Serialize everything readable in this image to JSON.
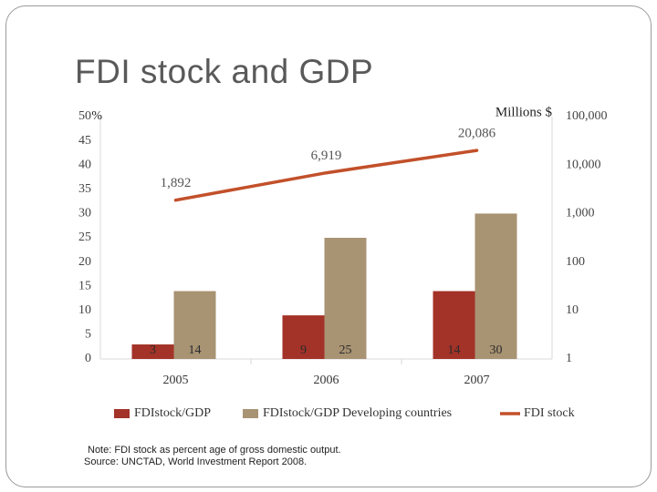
{
  "title": "FDI stock and GDP",
  "chart_data": {
    "type": "bar",
    "categories": [
      "2005",
      "2006",
      "2007"
    ],
    "series": [
      {
        "name": "FDIstock/GDP",
        "kind": "bar",
        "color": "#a33228",
        "values": [
          3,
          9,
          14
        ],
        "labels": [
          "3",
          "9",
          "14"
        ]
      },
      {
        "name": "FDIstock/GDP Developing countries",
        "kind": "bar",
        "color": "#a89373",
        "values": [
          14,
          25,
          30
        ],
        "labels": [
          "14",
          "25",
          "30"
        ]
      },
      {
        "name": "FDI stock",
        "kind": "line",
        "axis": "right",
        "color": "#c2502a",
        "values": [
          1892,
          6919,
          20086
        ],
        "labels": [
          "1,892",
          "6,919",
          "20,086"
        ]
      }
    ],
    "left_axis": {
      "label": "%",
      "ticks": [
        "0",
        "5",
        "10",
        "15",
        "20",
        "25",
        "30",
        "35",
        "40",
        "45",
        "50"
      ],
      "ylim": [
        0,
        50
      ]
    },
    "right_axis": {
      "label": "Millions $",
      "ticks": [
        "1",
        "10",
        "100",
        "1,000",
        "10,000",
        "100,000"
      ],
      "scale": "log",
      "ylim": [
        1,
        100000
      ]
    },
    "grid": false
  },
  "note": {
    "line1": "Note: FDI stock as percent age of gross domestic output.",
    "line2": "Source: UNCTAD, World Investment Report 2008."
  }
}
